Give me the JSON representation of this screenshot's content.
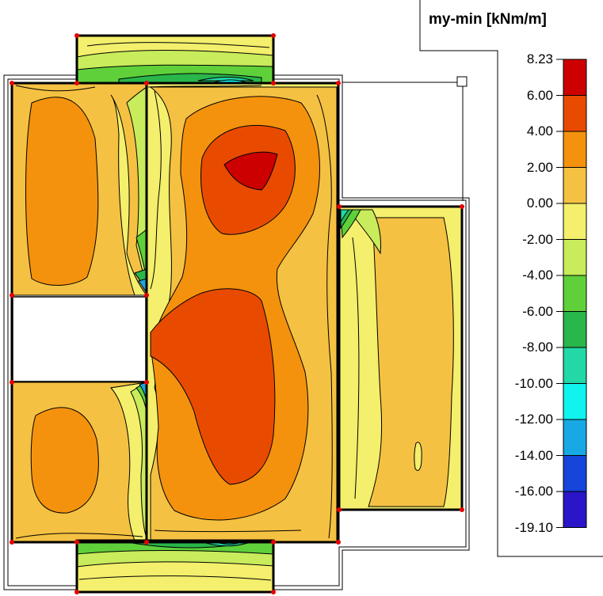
{
  "legend": {
    "title": "my-min [kNm/m]",
    "ticks": [
      "8.23",
      "6.00",
      "4.00",
      "2.00",
      "0.00",
      "-2.00",
      "-4.00",
      "-6.00",
      "-8.00",
      "-10.00",
      "-12.00",
      "-14.00",
      "-16.00",
      "-19.10"
    ],
    "bands": [
      {
        "range": "6.00 to 8.23",
        "color": "#cc0000"
      },
      {
        "range": "4.00 to 6.00",
        "color": "#e84b00"
      },
      {
        "range": "2.00 to 4.00",
        "color": "#f4920d"
      },
      {
        "range": "0.00 to 2.00",
        "color": "#f5c142"
      },
      {
        "range": "-2.00 to 0.00",
        "color": "#f4ef6c"
      },
      {
        "range": "-4.00 to -2.00",
        "color": "#c8ec5c"
      },
      {
        "range": "-6.00 to -4.00",
        "color": "#5fd03a"
      },
      {
        "range": "-8.00 to -6.00",
        "color": "#29b64a"
      },
      {
        "range": "-10.00 to -8.00",
        "color": "#22d8a6"
      },
      {
        "range": "-12.00 to -10.00",
        "color": "#10f3ee"
      },
      {
        "range": "-14.00 to -12.00",
        "color": "#18a8e4"
      },
      {
        "range": "-16.00 to -14.00",
        "color": "#1645dc"
      },
      {
        "range": "-19.10 to -16.00",
        "color": "#2a16c8"
      }
    ]
  }
}
